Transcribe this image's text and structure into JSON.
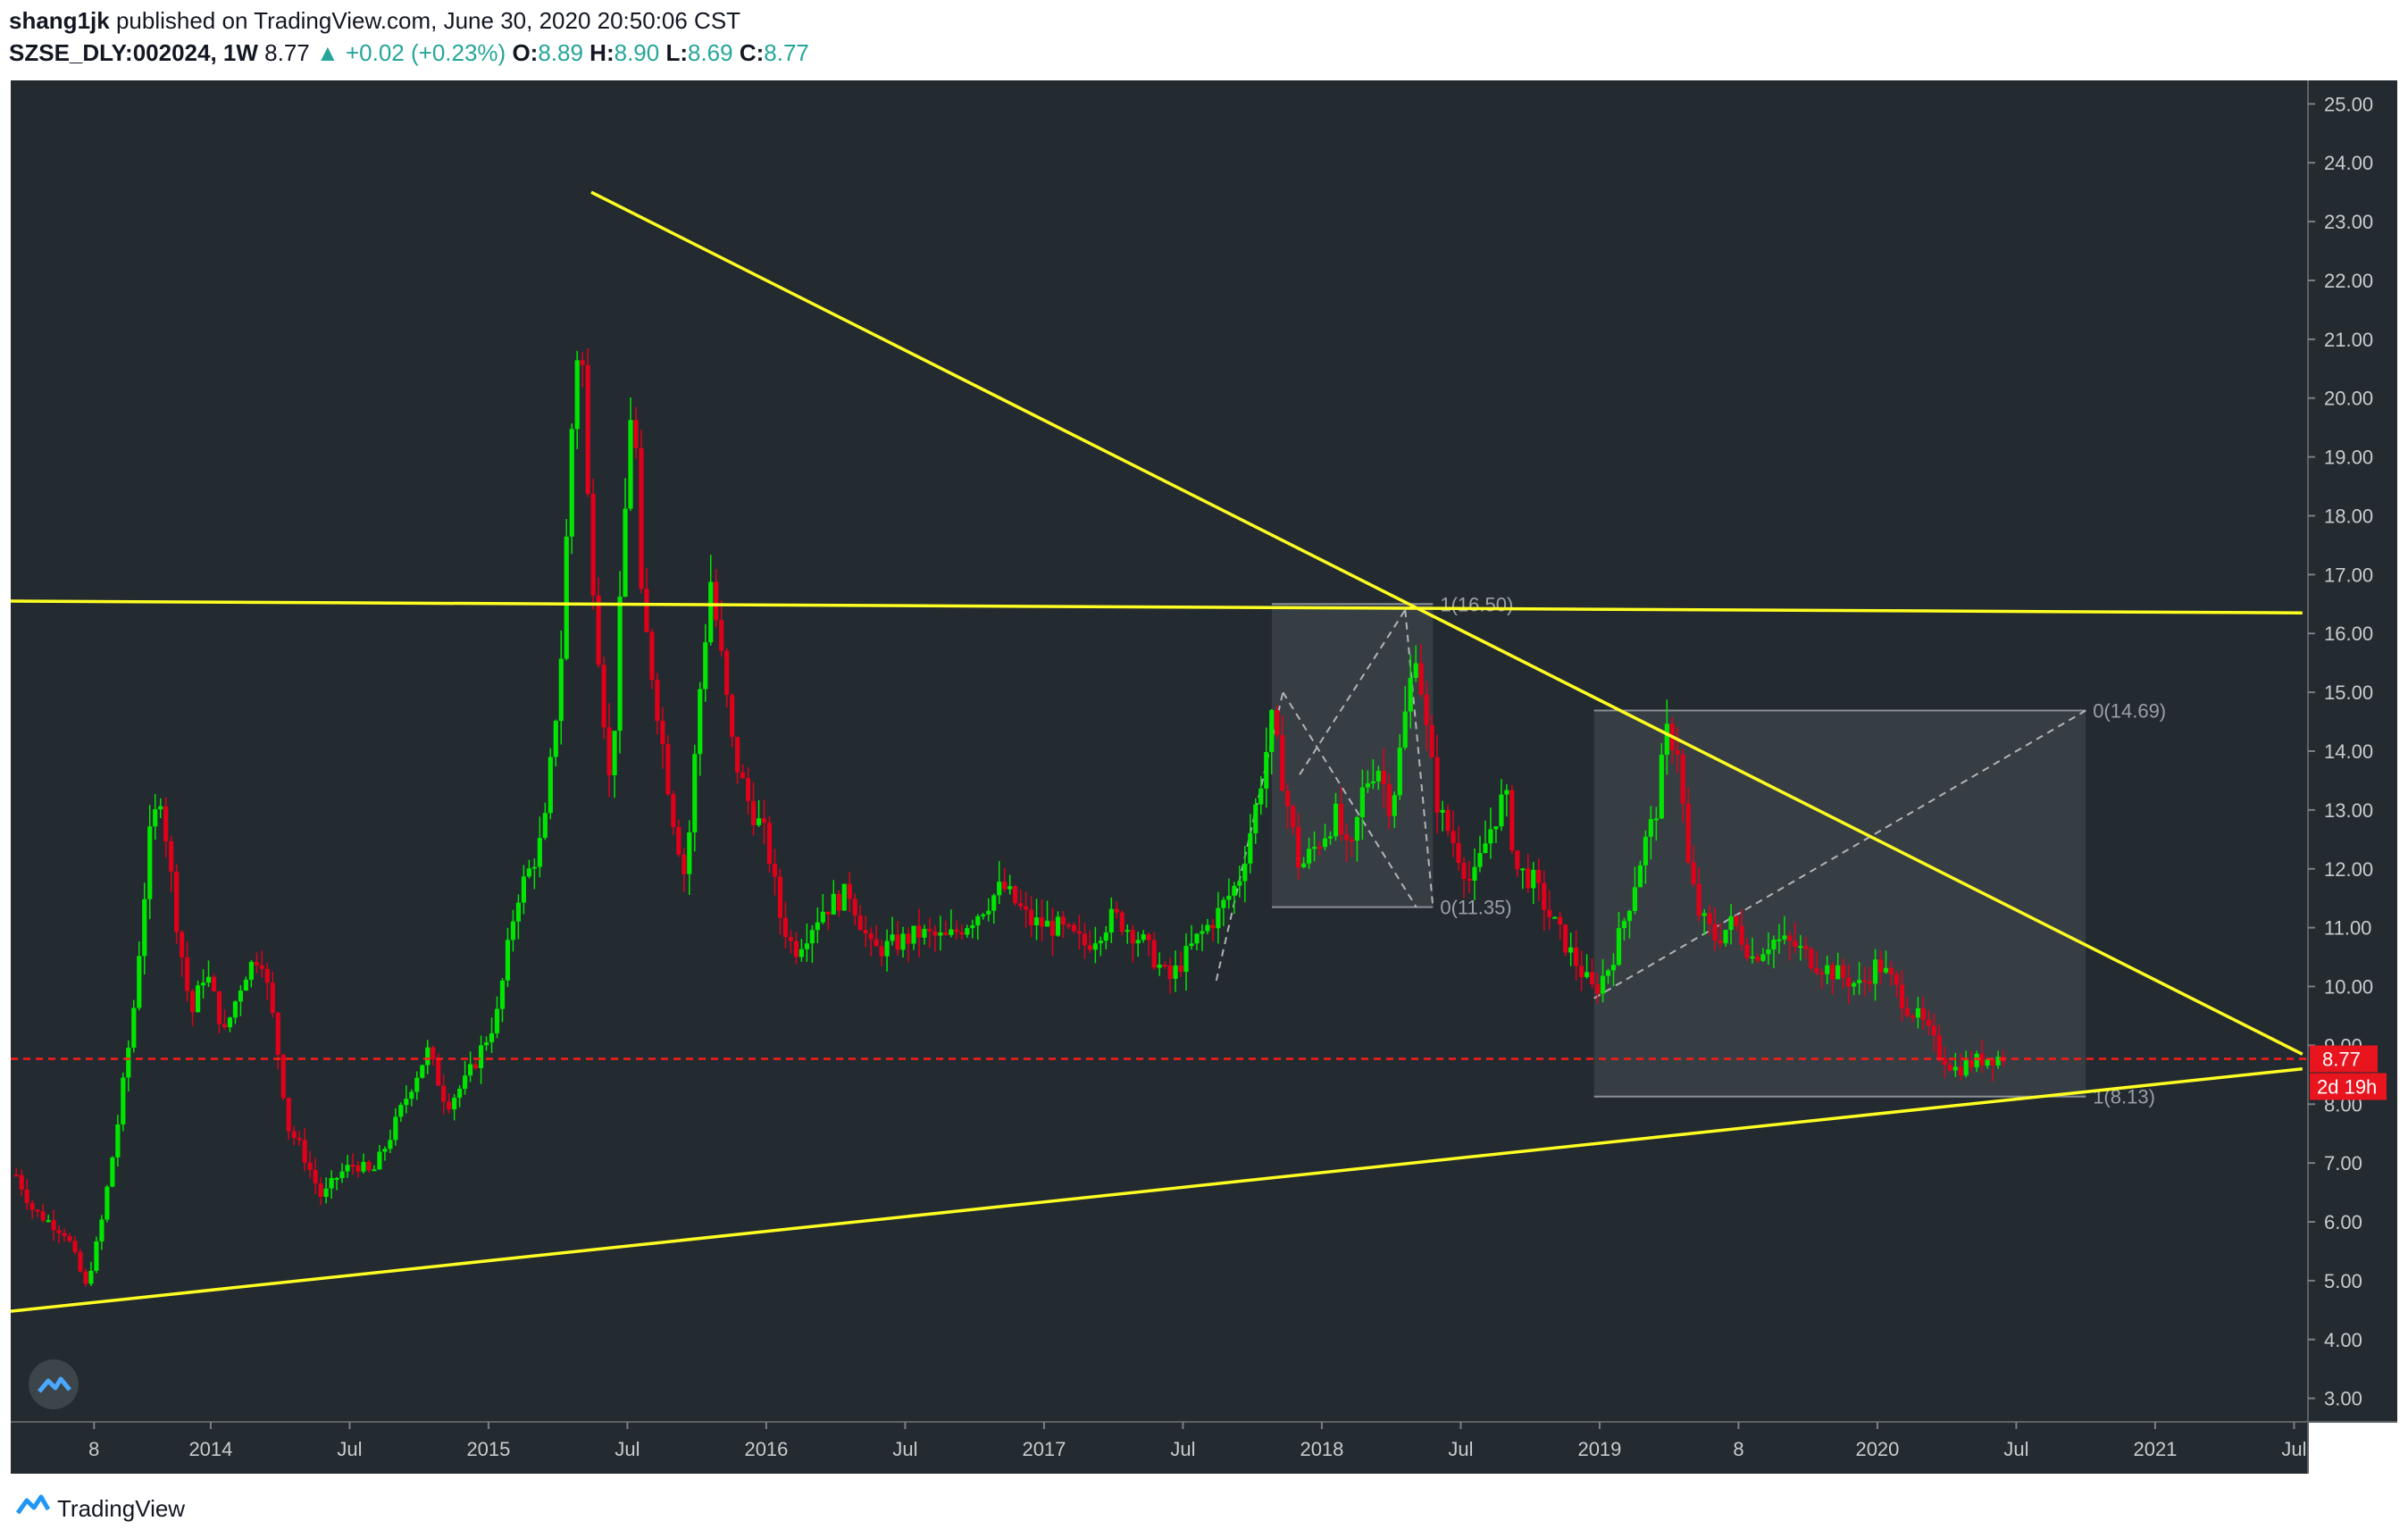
{
  "header": {
    "author": "shang1jk",
    "published_text": "published on TradingView.com, June 30, 2020 20:50:06 CST",
    "symbol": "SZSE_DLY:002024, 1W",
    "last": "8.77",
    "arrow": "▲",
    "change": "+0.02 (+0.23%)",
    "o_label": "O:",
    "o_value": "8.89",
    "h_label": "H:",
    "h_value": "8.90",
    "l_label": "L:",
    "l_value": "8.69",
    "c_label": "C:",
    "c_value": "8.77"
  },
  "footer": {
    "brand": "TradingView",
    "logo_icon": "tradingview-logo-icon"
  },
  "colors": {
    "background": "#232a30",
    "up": "#00e600",
    "down": "#e0001a",
    "trendline": "#ffff22",
    "current_price": "#ff1a1a",
    "box": "#3b4246"
  },
  "chart_data": {
    "type": "candlestick",
    "symbol": "SZSE_DLY:002024",
    "interval": "1W",
    "ylim": [
      2.6,
      25.4
    ],
    "y_ticks": [
      "3.00",
      "4.00",
      "5.00",
      "6.00",
      "7.00",
      "8.00",
      "9.00",
      "10.00",
      "11.00",
      "12.00",
      "13.00",
      "14.00",
      "15.00",
      "16.00",
      "17.00",
      "18.00",
      "19.00",
      "20.00",
      "21.00",
      "22.00",
      "23.00",
      "24.00",
      "25.00"
    ],
    "x_ticks": [
      {
        "label": "8",
        "t": 2013.58
      },
      {
        "label": "2014",
        "t": 2014.0
      },
      {
        "label": "Jul",
        "t": 2014.5
      },
      {
        "label": "2015",
        "t": 2015.0
      },
      {
        "label": "Jul",
        "t": 2015.5
      },
      {
        "label": "2016",
        "t": 2016.0
      },
      {
        "label": "Jul",
        "t": 2016.5
      },
      {
        "label": "2017",
        "t": 2017.0
      },
      {
        "label": "Jul",
        "t": 2017.5
      },
      {
        "label": "2018",
        "t": 2018.0
      },
      {
        "label": "Jul",
        "t": 2018.5
      },
      {
        "label": "2019",
        "t": 2019.0
      },
      {
        "label": "8",
        "t": 2019.5
      },
      {
        "label": "2020",
        "t": 2020.0
      },
      {
        "label": "Jul",
        "t": 2020.5
      },
      {
        "label": "2021",
        "t": 2021.0
      },
      {
        "label": "Jul",
        "t": 2021.5
      }
    ],
    "current_price": {
      "value": 8.77,
      "label": "8.77",
      "countdown": "2d 19h"
    },
    "price_path": [
      [
        2013.3,
        6.8
      ],
      [
        2013.36,
        6.2
      ],
      [
        2013.42,
        6.0
      ],
      [
        2013.48,
        5.8
      ],
      [
        2013.55,
        4.9
      ],
      [
        2013.6,
        5.8
      ],
      [
        2013.66,
        7.5
      ],
      [
        2013.72,
        9.5
      ],
      [
        2013.78,
        12.5
      ],
      [
        2013.82,
        13.3
      ],
      [
        2013.88,
        11.0
      ],
      [
        2013.93,
        9.5
      ],
      [
        2013.98,
        10.3
      ],
      [
        2014.05,
        9.2
      ],
      [
        2014.12,
        10.2
      ],
      [
        2014.18,
        10.6
      ],
      [
        2014.23,
        9.3
      ],
      [
        2014.28,
        7.6
      ],
      [
        2014.33,
        7.2
      ],
      [
        2014.4,
        6.4
      ],
      [
        2014.46,
        6.8
      ],
      [
        2014.52,
        7.0
      ],
      [
        2014.58,
        6.8
      ],
      [
        2014.65,
        7.5
      ],
      [
        2014.72,
        8.3
      ],
      [
        2014.78,
        8.9
      ],
      [
        2014.85,
        8.0
      ],
      [
        2014.92,
        8.4
      ],
      [
        2014.97,
        8.9
      ],
      [
        2015.03,
        9.5
      ],
      [
        2015.1,
        11.5
      ],
      [
        2015.15,
        12.0
      ],
      [
        2015.2,
        12.6
      ],
      [
        2015.26,
        15.5
      ],
      [
        2015.3,
        19.5
      ],
      [
        2015.33,
        21.5
      ],
      [
        2015.36,
        18.0
      ],
      [
        2015.4,
        15.5
      ],
      [
        2015.44,
        13.2
      ],
      [
        2015.48,
        17.0
      ],
      [
        2015.52,
        20.5
      ],
      [
        2015.55,
        16.5
      ],
      [
        2015.6,
        15.0
      ],
      [
        2015.66,
        13.0
      ],
      [
        2015.71,
        11.8
      ],
      [
        2015.76,
        15.0
      ],
      [
        2015.8,
        16.9
      ],
      [
        2015.84,
        15.5
      ],
      [
        2015.88,
        14.0
      ],
      [
        2015.93,
        13.2
      ],
      [
        2016.0,
        12.5
      ],
      [
        2016.05,
        11.2
      ],
      [
        2016.1,
        10.6
      ],
      [
        2016.2,
        11.3
      ],
      [
        2016.3,
        11.6
      ],
      [
        2016.38,
        10.6
      ],
      [
        2016.45,
        10.7
      ],
      [
        2016.55,
        10.9
      ],
      [
        2016.65,
        10.8
      ],
      [
        2016.75,
        11.2
      ],
      [
        2016.85,
        11.7
      ],
      [
        2016.95,
        11.1
      ],
      [
        2017.05,
        11.0
      ],
      [
        2017.15,
        10.7
      ],
      [
        2017.25,
        11.2
      ],
      [
        2017.35,
        10.8
      ],
      [
        2017.45,
        10.1
      ],
      [
        2017.55,
        10.8
      ],
      [
        2017.62,
        11.2
      ],
      [
        2017.7,
        11.8
      ],
      [
        2017.76,
        13.0
      ],
      [
        2017.82,
        14.5
      ],
      [
        2017.86,
        13.5
      ],
      [
        2017.92,
        12.0
      ],
      [
        2017.98,
        12.4
      ],
      [
        2018.05,
        12.9
      ],
      [
        2018.1,
        12.1
      ],
      [
        2018.15,
        13.4
      ],
      [
        2018.2,
        13.8
      ],
      [
        2018.25,
        13.0
      ],
      [
        2018.3,
        14.6
      ],
      [
        2018.34,
        15.8
      ],
      [
        2018.38,
        14.2
      ],
      [
        2018.42,
        13.0
      ],
      [
        2018.48,
        12.4
      ],
      [
        2018.54,
        11.7
      ],
      [
        2018.6,
        12.6
      ],
      [
        2018.66,
        13.3
      ],
      [
        2018.7,
        12.0
      ],
      [
        2018.76,
        11.8
      ],
      [
        2018.82,
        11.2
      ],
      [
        2018.88,
        10.7
      ],
      [
        2018.94,
        10.2
      ],
      [
        2018.98,
        9.9
      ],
      [
        2019.04,
        10.4
      ],
      [
        2019.1,
        11.3
      ],
      [
        2019.16,
        12.4
      ],
      [
        2019.2,
        12.9
      ],
      [
        2019.24,
        14.3
      ],
      [
        2019.28,
        14.1
      ],
      [
        2019.32,
        12.0
      ],
      [
        2019.36,
        11.2
      ],
      [
        2019.42,
        10.8
      ],
      [
        2019.48,
        11.1
      ],
      [
        2019.55,
        10.5
      ],
      [
        2019.62,
        10.8
      ],
      [
        2019.7,
        10.7
      ],
      [
        2019.78,
        10.4
      ],
      [
        2019.86,
        10.2
      ],
      [
        2019.94,
        10.0
      ],
      [
        2020.0,
        10.4
      ],
      [
        2020.05,
        10.1
      ],
      [
        2020.1,
        9.7
      ],
      [
        2020.16,
        9.4
      ],
      [
        2020.22,
        8.9
      ],
      [
        2020.28,
        8.6
      ],
      [
        2020.34,
        8.7
      ],
      [
        2020.4,
        8.8
      ],
      [
        2020.46,
        8.8
      ]
    ],
    "trendlines": [
      {
        "name": "upper-descending",
        "from": [
          2015.37,
          23.5
        ],
        "to": [
          2021.53,
          8.85
        ]
      },
      {
        "name": "horizontal-resistance",
        "from": [
          2013.28,
          16.55
        ],
        "to": [
          2021.53,
          16.35
        ]
      },
      {
        "name": "lower-ascending",
        "from": [
          2013.28,
          4.48
        ],
        "to": [
          2021.53,
          8.6
        ]
      }
    ],
    "fib_boxes": [
      {
        "from_t": 2017.82,
        "to_t": 2018.4,
        "top": 16.5,
        "bottom": 11.35,
        "labels": [
          "1(16.50)",
          "0(11.35)"
        ]
      },
      {
        "from_t": 2018.98,
        "to_t": 2020.75,
        "top": 14.69,
        "bottom": 8.13,
        "labels": [
          "0(14.69)",
          "1(8.13)"
        ]
      }
    ]
  }
}
